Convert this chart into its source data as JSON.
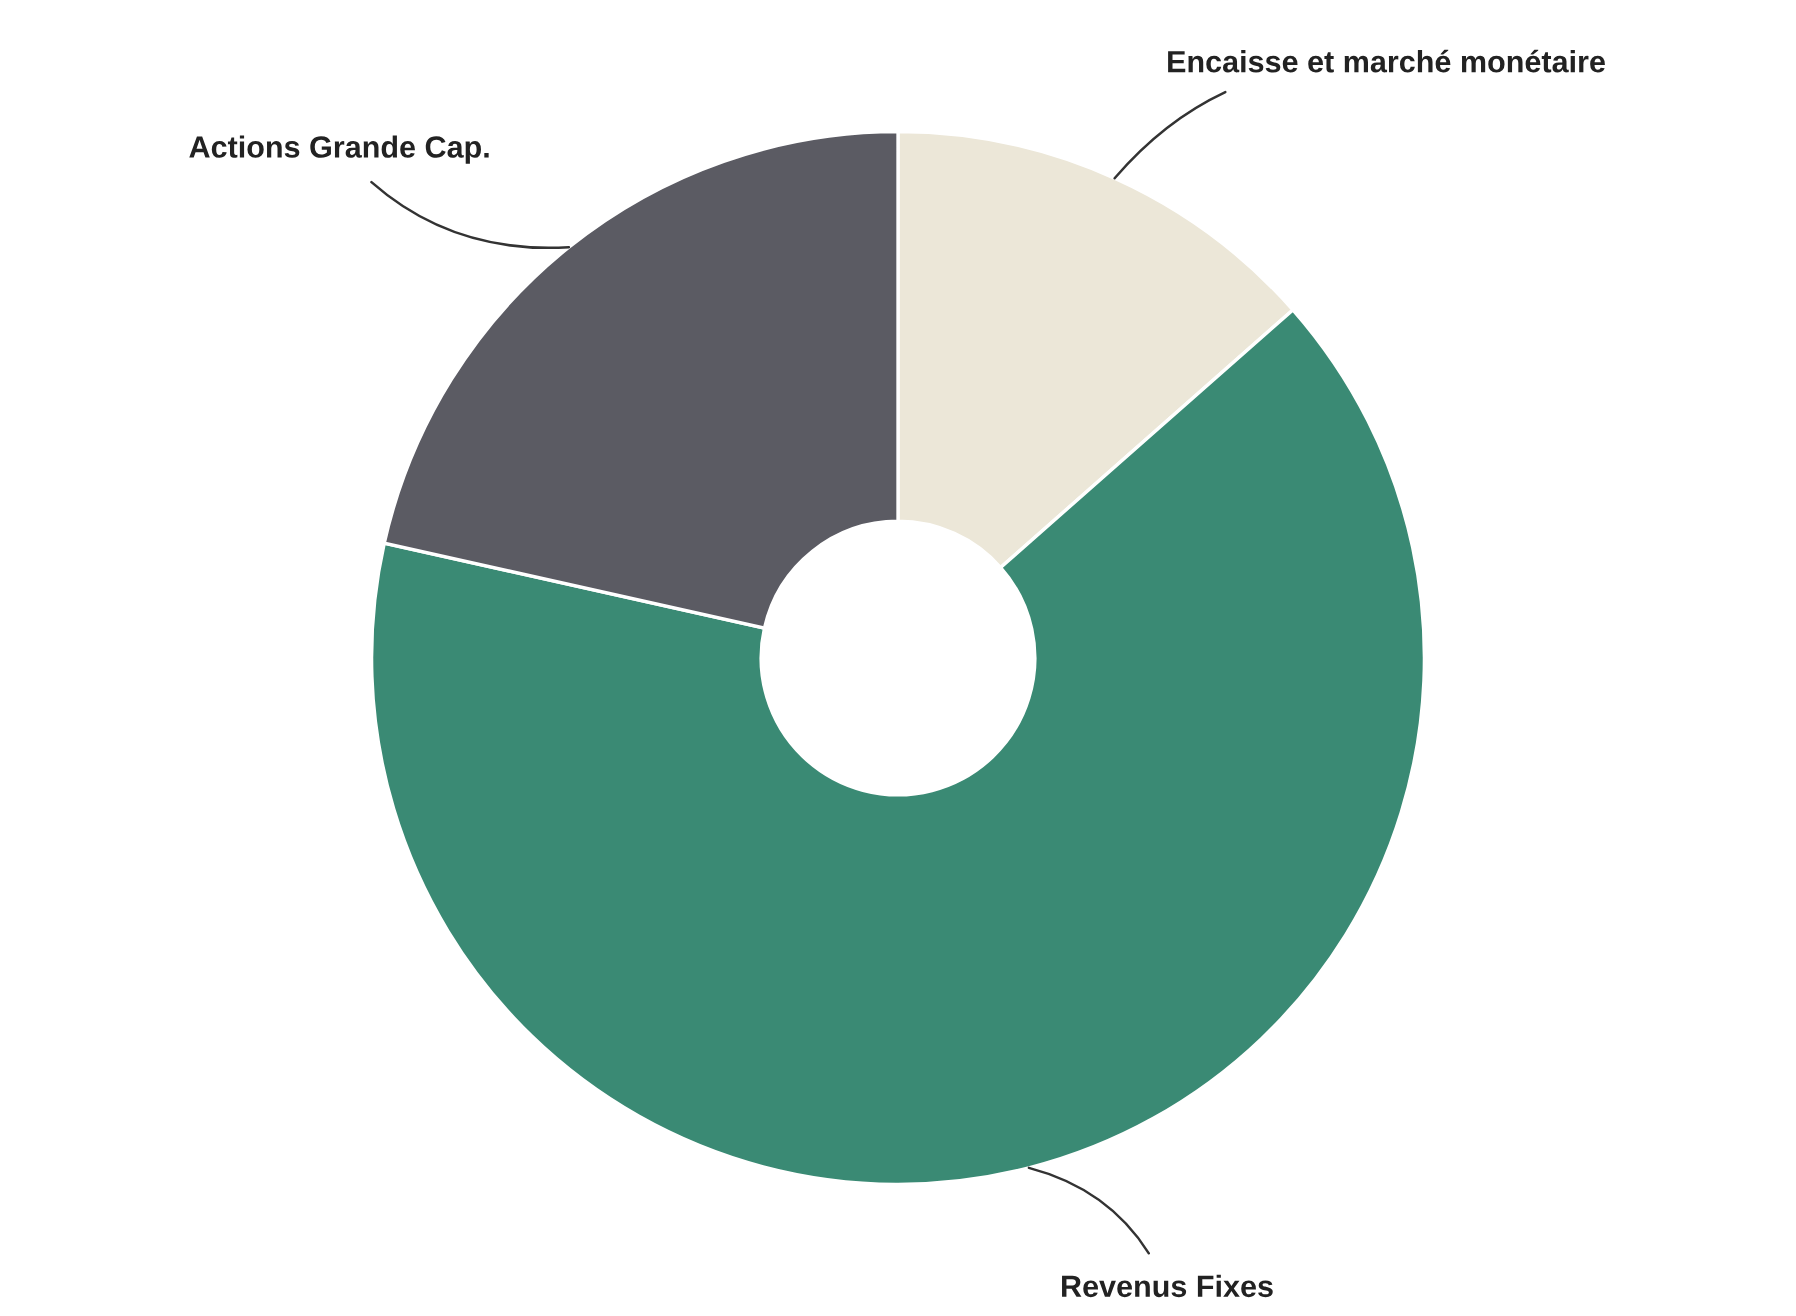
{
  "chart_data": {
    "type": "donut",
    "categories": [
      "Encaisse et marché monétaire",
      "Revenus Fixes",
      "Actions Grande Cap."
    ],
    "values": [
      13.5,
      65,
      21.5
    ],
    "colors": [
      "#ece7d8",
      "#3a8a74",
      "#5b5b63"
    ]
  }
}
